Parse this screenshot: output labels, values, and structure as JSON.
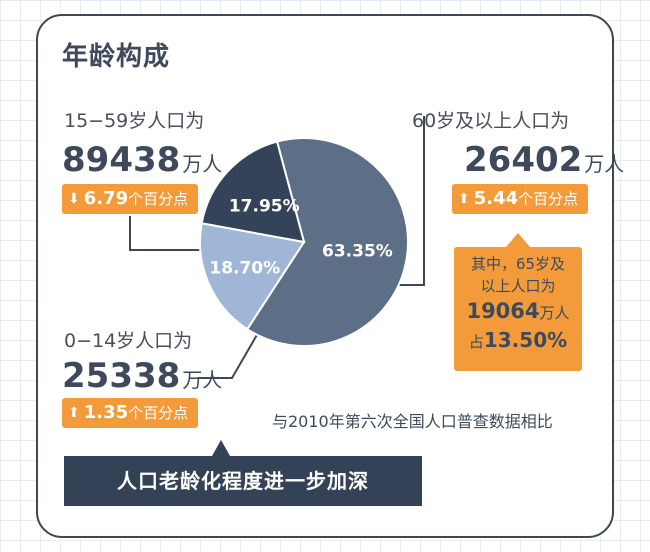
{
  "title": "年龄构成",
  "groups": {
    "mid": {
      "label": "15−59岁人口为",
      "value": "89438",
      "unit": "万人",
      "arrow": "⬇",
      "change": "6.79",
      "change_suffix": "个百分点"
    },
    "old": {
      "label": "60岁及以上人口为",
      "value": "26402",
      "unit": "万人",
      "arrow": "⬆",
      "change": "5.44",
      "change_suffix": "个百分点"
    },
    "young": {
      "label": "0−14岁人口为",
      "value": "25338",
      "unit": "万人",
      "arrow": "⬆",
      "change": "1.35",
      "change_suffix": "个百分点"
    }
  },
  "callout": {
    "line1": "其中，65岁及",
    "line2": "以上人口为",
    "value": "19064",
    "unit": "万人",
    "prefix": "占",
    "percent": "13.50%"
  },
  "note": "与2010年第六次全国人口普查数据相比",
  "banner": "人口老龄化程度进一步加深",
  "colors": {
    "slice_mid": "#5d6e87",
    "slice_old": "#9fb6d6",
    "slice_young": "#34435a",
    "accent": "#f39a3a",
    "banner_bg": "#344257",
    "text": "#3e4a5c"
  },
  "chart_data": {
    "type": "pie",
    "slices": [
      {
        "label": "63.35%",
        "value": 63.35,
        "color": "#5d6e87"
      },
      {
        "label": "18.70%",
        "value": 18.7,
        "color": "#9fb6d6"
      },
      {
        "label": "17.95%",
        "value": 17.95,
        "color": "#34435a"
      }
    ]
  }
}
